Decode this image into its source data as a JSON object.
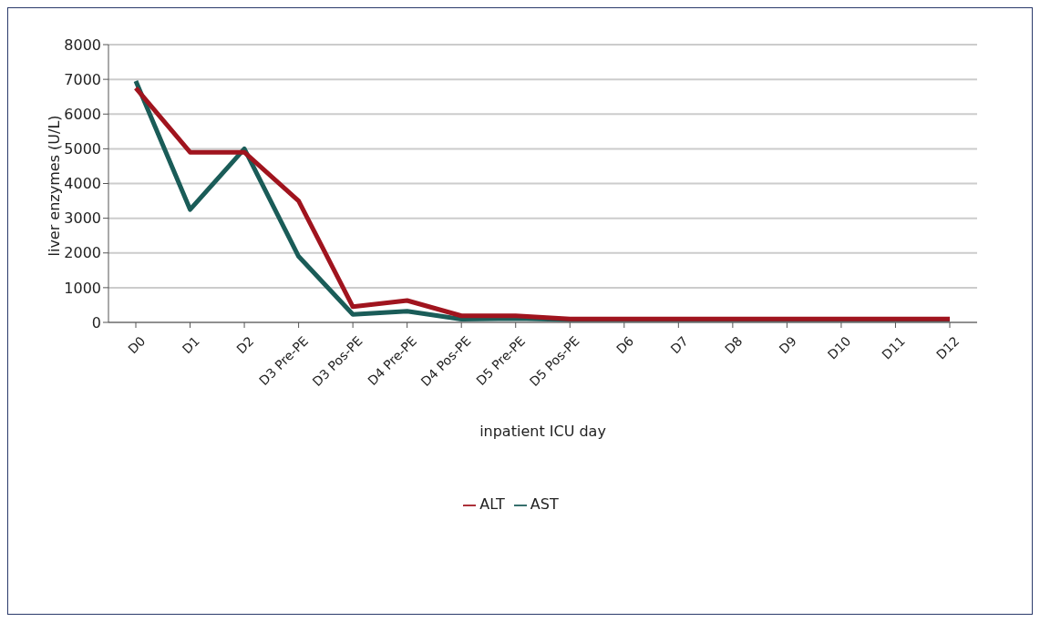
{
  "chart_data": {
    "type": "line",
    "xlabel": "inpatient ICU day",
    "ylabel": "liver enzymes (U/L)",
    "categories": [
      "D0",
      "D1",
      "D2",
      "D3 Pre-PE",
      "D3 Pos-PE",
      "D4 Pre-PE",
      "D4 Pos-PE",
      "D5 Pre-PE",
      "D5 Pos-PE",
      "D6",
      "D7",
      "D8",
      "D9",
      "D10",
      "D11",
      "D12"
    ],
    "series": [
      {
        "name": "AST",
        "color": "#1a5c58",
        "values": [
          6950,
          3250,
          5000,
          1900,
          230,
          320,
          90,
          110,
          80,
          80,
          80,
          80,
          80,
          80,
          80,
          80
        ]
      },
      {
        "name": "ALT",
        "color": "#a0141e",
        "values": [
          6750,
          4900,
          4900,
          3500,
          450,
          630,
          190,
          190,
          100,
          100,
          100,
          100,
          100,
          100,
          100,
          100
        ]
      }
    ],
    "ylim": [
      0,
      8000
    ],
    "yticks": [
      0,
      1000,
      2000,
      3000,
      4000,
      5000,
      6000,
      7000,
      8000
    ],
    "grid": "y",
    "legend": "bottom",
    "marker": "none",
    "line_style": "solid"
  }
}
